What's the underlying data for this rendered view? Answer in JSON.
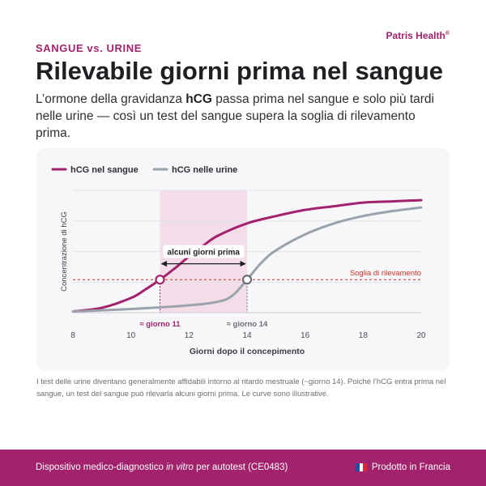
{
  "header": {
    "eyebrow": "SANGUE vs. URINE",
    "brand": "Patris Health",
    "brand_mark": "®",
    "title": "Rilevabile giorni prima nel sangue",
    "intro_pre": "L’ormone della gravidanza ",
    "intro_bold": "hCG",
    "intro_post": " passa prima nel sangue e solo più tardi nelle urine — così un test del sangue supera la soglia di rilevamento prima."
  },
  "chart_data": {
    "type": "line",
    "xlabel": "Giorni dopo il concepimento",
    "ylabel": "Concentrazione di hCG",
    "xlim": [
      8,
      20
    ],
    "ylim": [
      0,
      1
    ],
    "xticks": [
      8,
      10,
      12,
      14,
      16,
      18,
      20
    ],
    "grid": "horizontal",
    "legend": "top-left",
    "series": [
      {
        "name": "hCG nel sangue",
        "color": "#a3226e",
        "x": [
          8,
          9,
          10,
          10.5,
          11,
          11.5,
          12,
          12.5,
          13,
          14,
          15,
          16,
          17,
          18,
          19,
          20
        ],
        "y": [
          0.01,
          0.04,
          0.12,
          0.19,
          0.27,
          0.36,
          0.46,
          0.55,
          0.63,
          0.73,
          0.79,
          0.84,
          0.87,
          0.9,
          0.91,
          0.92
        ]
      },
      {
        "name": "hCG nelle urine",
        "color": "#9aa3ad",
        "x": [
          8,
          10,
          12,
          13,
          13.5,
          14,
          14.5,
          15,
          16,
          17,
          18,
          19,
          20
        ],
        "y": [
          0.01,
          0.03,
          0.06,
          0.09,
          0.14,
          0.27,
          0.41,
          0.51,
          0.64,
          0.73,
          0.79,
          0.83,
          0.86
        ]
      }
    ],
    "threshold": {
      "y": 0.27,
      "label": "Soglia di rilevamento",
      "color": "#c9302c"
    },
    "highlight": {
      "x_start": 11,
      "x_end": 14,
      "label": "alcuni giorni prima"
    },
    "markers": [
      {
        "x": 11,
        "label": "≈ giorno 11",
        "color": "#a3226e"
      },
      {
        "x": 14,
        "label": "≈ giorno 14",
        "color": "#6b6f76"
      }
    ]
  },
  "footnote": "I test delle urine diventano generalmente affidabili intorno al ritardo mestruale (~giorno 14). Poiché l’hCG entra prima nel sangue, un test del sangue può rilevarla alcuni giorni prima. Le curve sono illustrative.",
  "footer": {
    "left_pre": "Dispositivo medico-diagnostico ",
    "left_em": "in vitro",
    "left_post": " per autotest (CE0483)",
    "right": "Prodotto in Francia",
    "flag_colors": [
      "#1f4fa0",
      "#ffffff",
      "#d62839"
    ]
  }
}
